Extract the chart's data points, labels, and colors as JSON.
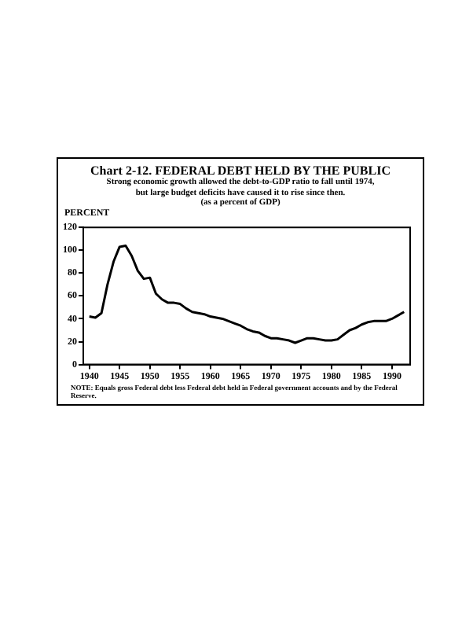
{
  "chart_data": {
    "type": "line",
    "title": "Chart 2-12.  FEDERAL DEBT HELD BY THE PUBLIC",
    "subtitle": "Strong economic growth allowed the debt-to-GDP ratio to fall until 1974, but large budget deficits have caused it to rise since then.\n(as a percent of GDP)",
    "ylabel": "PERCENT",
    "annotations": [
      "NOTE:  Equals gross Federal debt less Federal debt held in Federal government accounts and by the Federal Reserve."
    ],
    "x": [
      1940,
      1941,
      1942,
      1943,
      1944,
      1945,
      1946,
      1947,
      1948,
      1949,
      1950,
      1951,
      1952,
      1953,
      1954,
      1955,
      1956,
      1957,
      1958,
      1959,
      1960,
      1961,
      1962,
      1963,
      1964,
      1965,
      1966,
      1967,
      1968,
      1969,
      1970,
      1971,
      1972,
      1973,
      1974,
      1975,
      1976,
      1977,
      1978,
      1979,
      1980,
      1981,
      1982,
      1983,
      1984,
      1985,
      1986,
      1987,
      1988,
      1989,
      1990,
      1991,
      1992
    ],
    "series": [
      {
        "color": "#000000",
        "values": [
          42,
          41,
          45,
          70,
          90,
          103,
          104,
          95,
          82,
          75,
          76,
          62,
          57,
          54,
          54,
          53,
          49,
          46,
          45,
          44,
          42,
          41,
          40,
          38,
          36,
          34,
          31,
          29,
          28,
          25,
          23,
          23,
          22,
          21,
          19,
          21,
          23,
          23,
          22,
          21,
          21,
          22,
          26,
          30,
          32,
          35,
          37,
          38,
          38,
          38,
          40,
          43,
          46
        ]
      }
    ],
    "xlim": [
      1939,
      1993
    ],
    "xticks": [
      1940,
      1945,
      1950,
      1955,
      1960,
      1965,
      1970,
      1975,
      1980,
      1985,
      1990
    ],
    "ylim": [
      0,
      120
    ],
    "yticks": [
      0,
      20,
      40,
      60,
      80,
      100,
      120
    ],
    "grid": false,
    "legend": false,
    "marker": "none",
    "line_style": "solid"
  }
}
